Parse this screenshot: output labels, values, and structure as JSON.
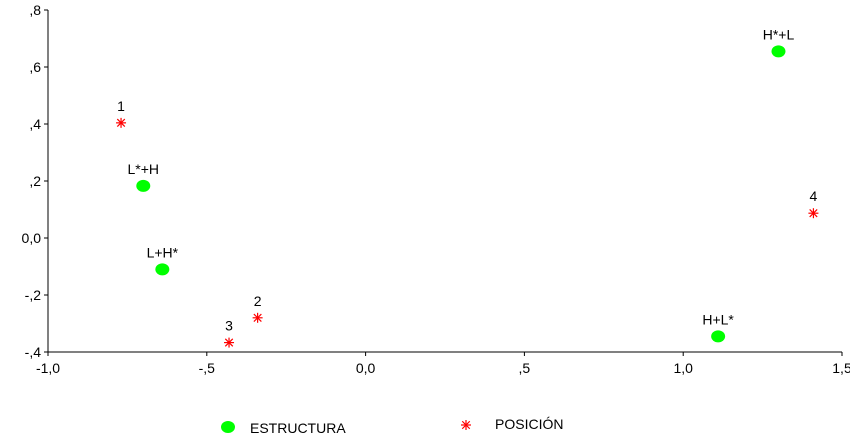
{
  "chart_data": {
    "type": "scatter",
    "xlim": [
      -1.0,
      1.5
    ],
    "ylim": [
      -0.4,
      0.8
    ],
    "x_ticks": [
      {
        "value": -1.0,
        "label": "-1,0"
      },
      {
        "value": -0.5,
        "label": "-,5"
      },
      {
        "value": 0.0,
        "label": "0,0"
      },
      {
        "value": 0.5,
        "label": ",5"
      },
      {
        "value": 1.0,
        "label": "1,0"
      },
      {
        "value": 1.5,
        "label": "1,5"
      }
    ],
    "y_ticks": [
      {
        "value": 0.8,
        "label": ",8"
      },
      {
        "value": 0.6,
        "label": ",6"
      },
      {
        "value": 0.4,
        "label": ",4"
      },
      {
        "value": 0.2,
        "label": ",2"
      },
      {
        "value": 0.0,
        "label": "0,0"
      },
      {
        "value": -0.2,
        "label": "-,2"
      },
      {
        "value": -0.4,
        "label": "-,4"
      }
    ],
    "grid": false,
    "legend_position": "bottom",
    "series": [
      {
        "name": "ESTRUCTURA",
        "marker": "circle",
        "color": "#00ff00",
        "points": [
          {
            "label": "H*+L",
            "x": 1.3,
            "y": 0.655
          },
          {
            "label": "L*+H",
            "x": -0.7,
            "y": 0.183
          },
          {
            "label": "L+H*",
            "x": -0.64,
            "y": -0.11
          },
          {
            "label": "H+L*",
            "x": 1.11,
            "y": -0.345
          }
        ]
      },
      {
        "name": "POSICIÓN",
        "marker": "asterisk",
        "color": "#ff0000",
        "points": [
          {
            "label": "1",
            "x": -0.77,
            "y": 0.404
          },
          {
            "label": "2",
            "x": -0.34,
            "y": -0.28
          },
          {
            "label": "3",
            "x": -0.43,
            "y": -0.367
          },
          {
            "label": "4",
            "x": 1.41,
            "y": 0.087
          }
        ]
      }
    ]
  }
}
